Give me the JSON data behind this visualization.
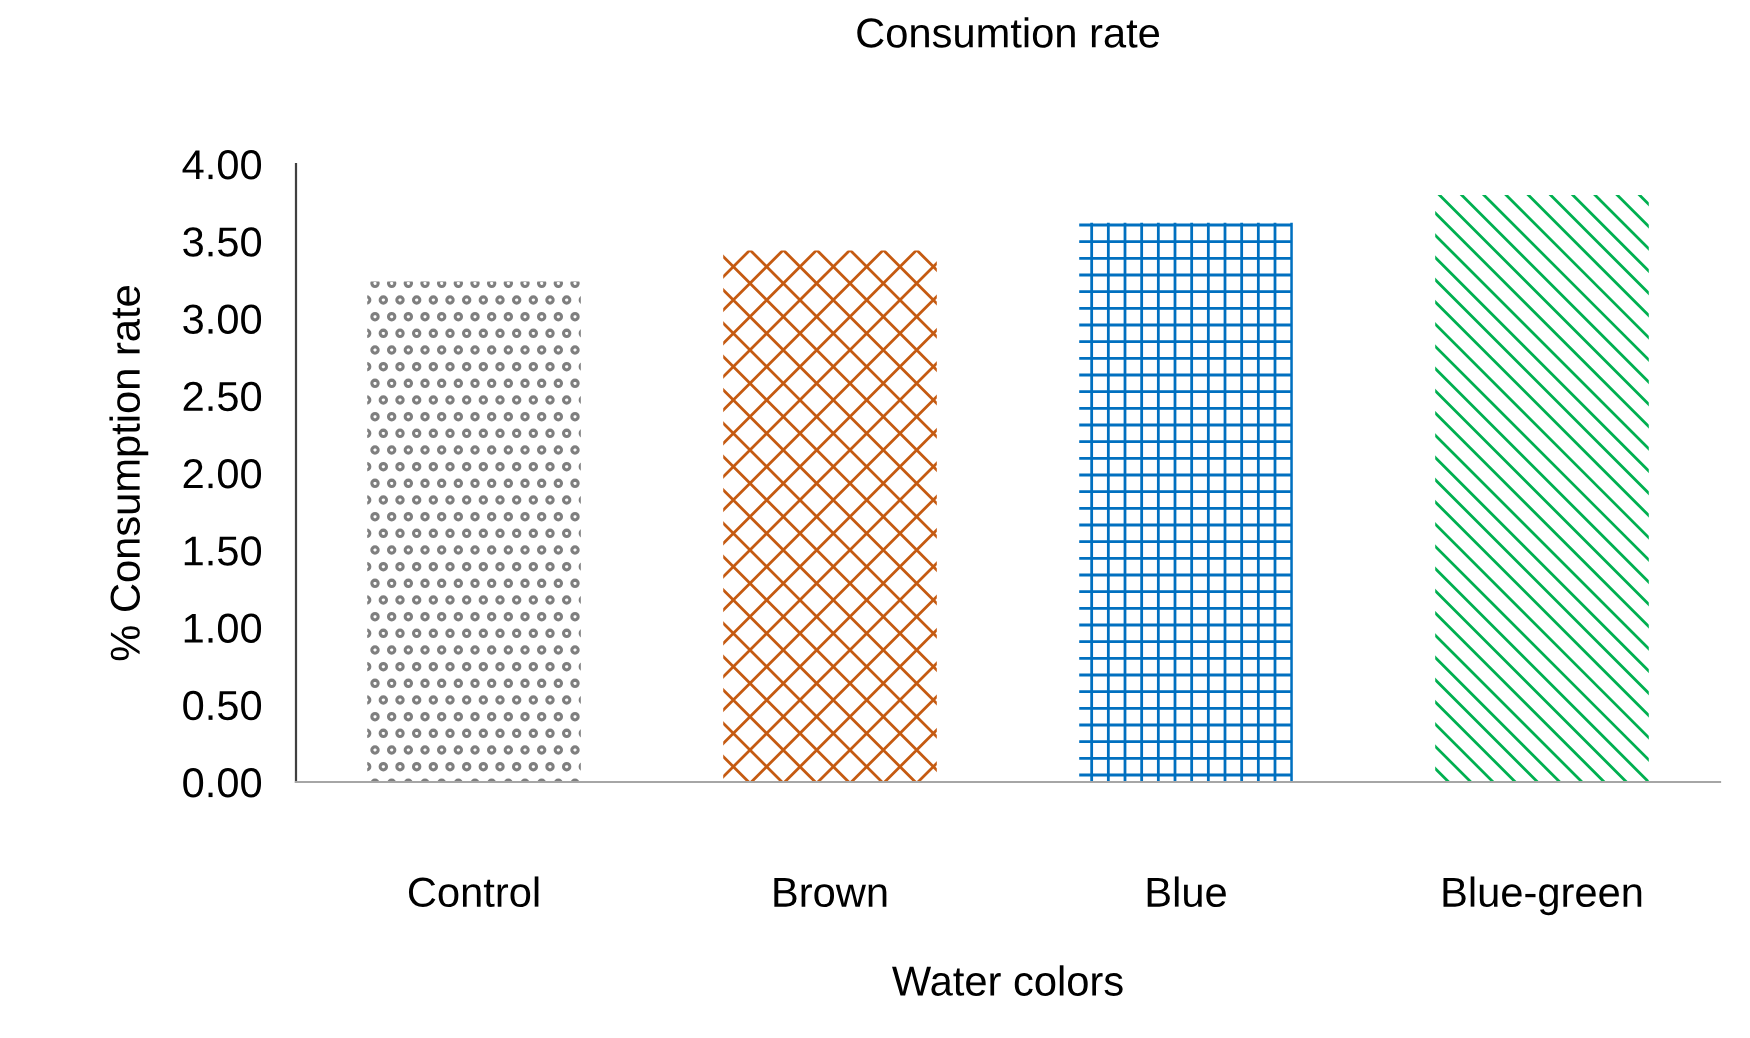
{
  "chart_data": {
    "type": "bar",
    "title": "Consumtion rate",
    "xlabel": "Water colors",
    "ylabel": "% Consumption rate",
    "categories": [
      "Control",
      "Brown",
      "Blue",
      "Blue-green"
    ],
    "values": [
      3.24,
      3.44,
      3.62,
      3.8
    ],
    "colors": [
      "#7f7f7f",
      "#c55a11",
      "#0070c0",
      "#00b050"
    ],
    "ylim": [
      0,
      4
    ],
    "yticks": [
      {
        "value": 0,
        "label": "0.00"
      },
      {
        "value": 0.5,
        "label": "0.50"
      },
      {
        "value": 1,
        "label": "1.00"
      },
      {
        "value": 1.5,
        "label": "1.50"
      },
      {
        "value": 2,
        "label": "2.00"
      },
      {
        "value": 2.5,
        "label": "2.50"
      },
      {
        "value": 3,
        "label": "3.00"
      },
      {
        "value": 3.5,
        "label": "3.50"
      },
      {
        "value": 4,
        "label": "4.00"
      }
    ],
    "grid": false,
    "legend": false
  }
}
